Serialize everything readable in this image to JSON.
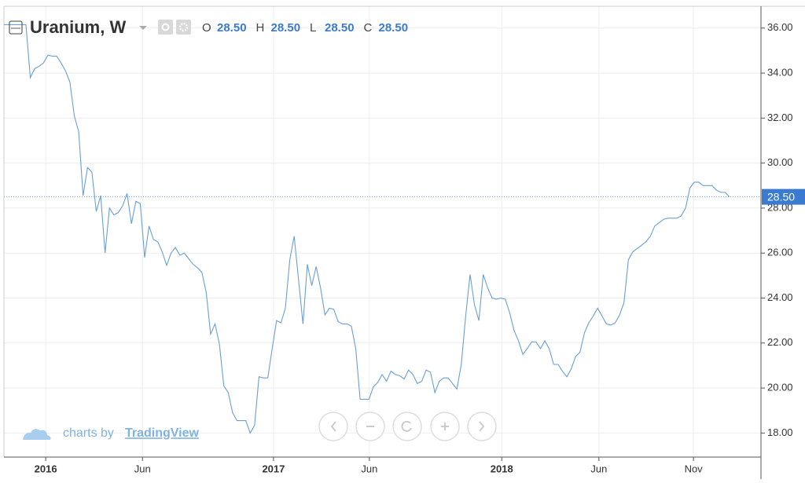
{
  "chart_data": {
    "type": "line",
    "title": "Uranium, W",
    "ohlc_labels": [
      "O",
      "H",
      "L",
      "C"
    ],
    "ohlc_values": [
      "28.50",
      "28.50",
      "28.50",
      "28.50"
    ],
    "last_price": {
      "value": 28.5,
      "label": "28.50"
    },
    "watermark": [
      "charts by",
      "TradingView"
    ],
    "color": "#6a9fd6",
    "grid": true,
    "xlim": [
      0,
      165
    ],
    "xticks": [
      {
        "value": 9.5,
        "label": "2016"
      },
      {
        "value": 31.5,
        "label": "Jun"
      },
      {
        "value": 61.3,
        "label": "2017"
      },
      {
        "value": 83.1,
        "label": "Jun"
      },
      {
        "value": 113.2,
        "label": "2018"
      },
      {
        "value": 135.3,
        "label": "Jun"
      },
      {
        "value": 156.8,
        "label": "Nov"
      }
    ],
    "ylim": [
      17.0,
      36.9
    ],
    "yticks": [
      {
        "value": 18,
        "label": "18.00"
      },
      {
        "value": 20,
        "label": "20.00"
      },
      {
        "value": 22,
        "label": "22.00"
      },
      {
        "value": 24,
        "label": "24.00"
      },
      {
        "value": 26,
        "label": "26.00"
      },
      {
        "value": 28,
        "label": "28.00"
      },
      {
        "value": 30,
        "label": "30.00"
      },
      {
        "value": 32,
        "label": "32.00"
      },
      {
        "value": 34,
        "label": "34.00"
      },
      {
        "value": 36,
        "label": "36.00"
      }
    ],
    "values": [
      36.15,
      36.15,
      36.15,
      36.15,
      36.15,
      36.15,
      33.8,
      34.2,
      34.3,
      34.45,
      34.8,
      34.75,
      34.75,
      34.45,
      34.1,
      33.6,
      32.1,
      31.4,
      28.55,
      29.8,
      29.6,
      27.85,
      28.55,
      26.0,
      28.0,
      27.7,
      27.8,
      28.1,
      28.65,
      27.3,
      28.3,
      28.2,
      25.8,
      27.2,
      26.6,
      26.5,
      26.05,
      25.45,
      26.0,
      26.25,
      25.9,
      26.0,
      25.75,
      25.5,
      25.35,
      25.15,
      24.25,
      22.4,
      22.85,
      21.95,
      20.1,
      19.8,
      18.9,
      18.55,
      18.55,
      18.55,
      18.0,
      18.35,
      20.5,
      20.45,
      20.45,
      21.75,
      23.0,
      22.9,
      23.55,
      25.7,
      26.75,
      24.8,
      22.85,
      25.5,
      24.55,
      25.4,
      24.45,
      23.25,
      23.55,
      23.5,
      22.95,
      22.85,
      22.85,
      22.75,
      21.75,
      19.5,
      19.5,
      19.5,
      20.05,
      20.25,
      20.6,
      20.3,
      20.75,
      20.6,
      20.55,
      20.4,
      20.8,
      20.6,
      20.2,
      20.3,
      20.8,
      20.7,
      19.8,
      20.3,
      20.45,
      20.45,
      20.2,
      19.95,
      21.05,
      23.2,
      25.05,
      23.7,
      23.0,
      25.05,
      24.45,
      24.0,
      23.95,
      24.0,
      23.95,
      23.35,
      22.55,
      22.1,
      21.5,
      21.75,
      22.05,
      22.05,
      21.75,
      22.1,
      21.75,
      21.05,
      21.05,
      20.75,
      20.5,
      20.85,
      21.4,
      21.6,
      22.45,
      22.9,
      23.2,
      23.55,
      23.2,
      22.85,
      22.8,
      22.9,
      23.25,
      23.8,
      25.7,
      26.05,
      26.2,
      26.35,
      26.5,
      26.75,
      27.2,
      27.35,
      27.5,
      27.55,
      27.55,
      27.55,
      27.65,
      28.0,
      28.9,
      29.15,
      29.15,
      29.0,
      29.0,
      29.0,
      28.8,
      28.7,
      28.7,
      28.5
    ]
  }
}
